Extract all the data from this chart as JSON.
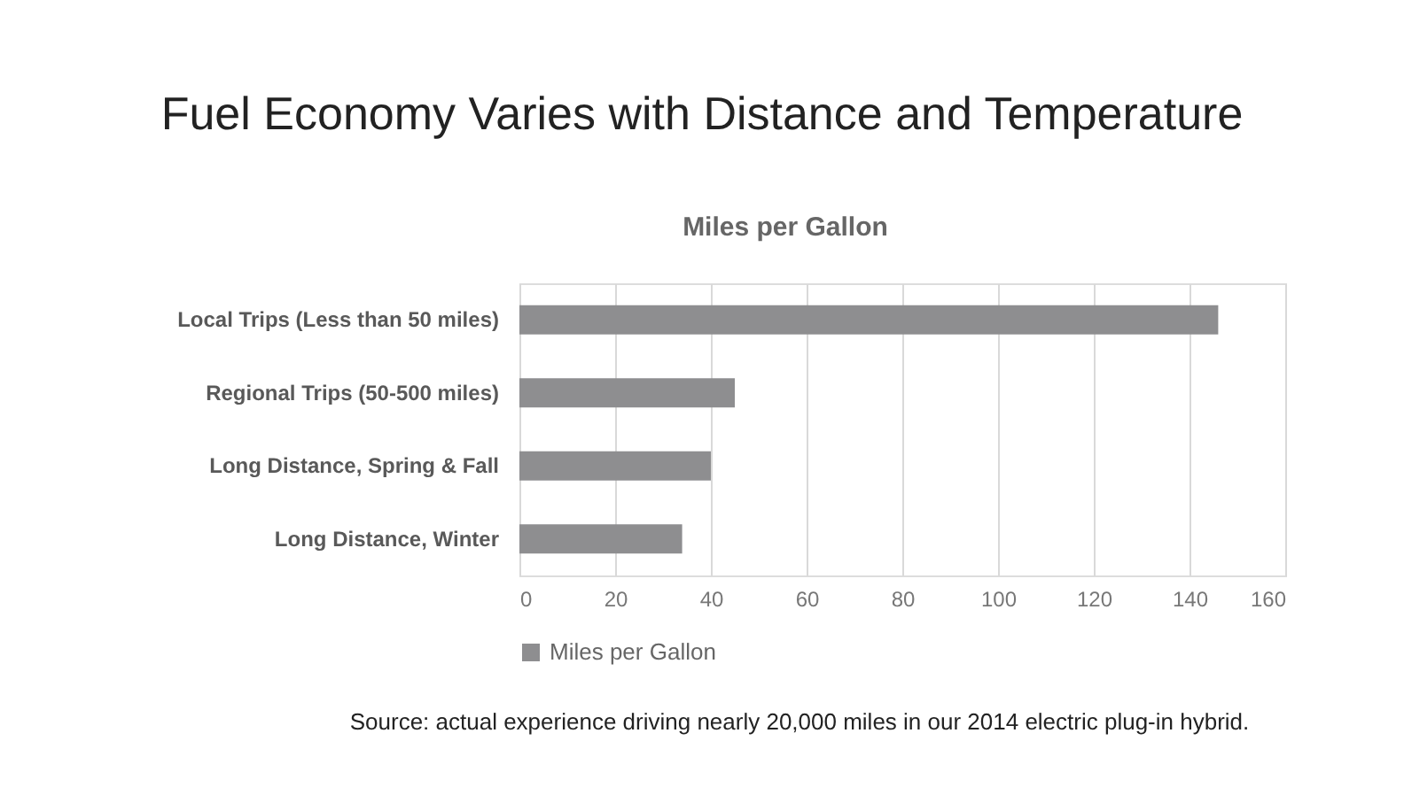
{
  "chart_data": {
    "type": "bar",
    "orientation": "horizontal",
    "title": "Fuel Economy Varies with Distance and Temperature",
    "subtitle": "Miles per Gallon",
    "categories": [
      "Local Trips (Less than 50 miles)",
      "Regional Trips (50-500 miles)",
      "Long Distance, Spring & Fall",
      "Long Distance, Winter"
    ],
    "series": [
      {
        "name": "Miles per Gallon",
        "color": "#8e8e90",
        "values": [
          146,
          45,
          40,
          34
        ]
      }
    ],
    "xlim": [
      0,
      160
    ],
    "xticks": [
      0,
      20,
      40,
      60,
      80,
      100,
      120,
      140,
      160
    ],
    "grid": "x",
    "legend": "bottom",
    "annotations": [
      "Source:  actual experience driving nearly 20,000 miles in our 2014 electric plug-in hybrid."
    ]
  }
}
